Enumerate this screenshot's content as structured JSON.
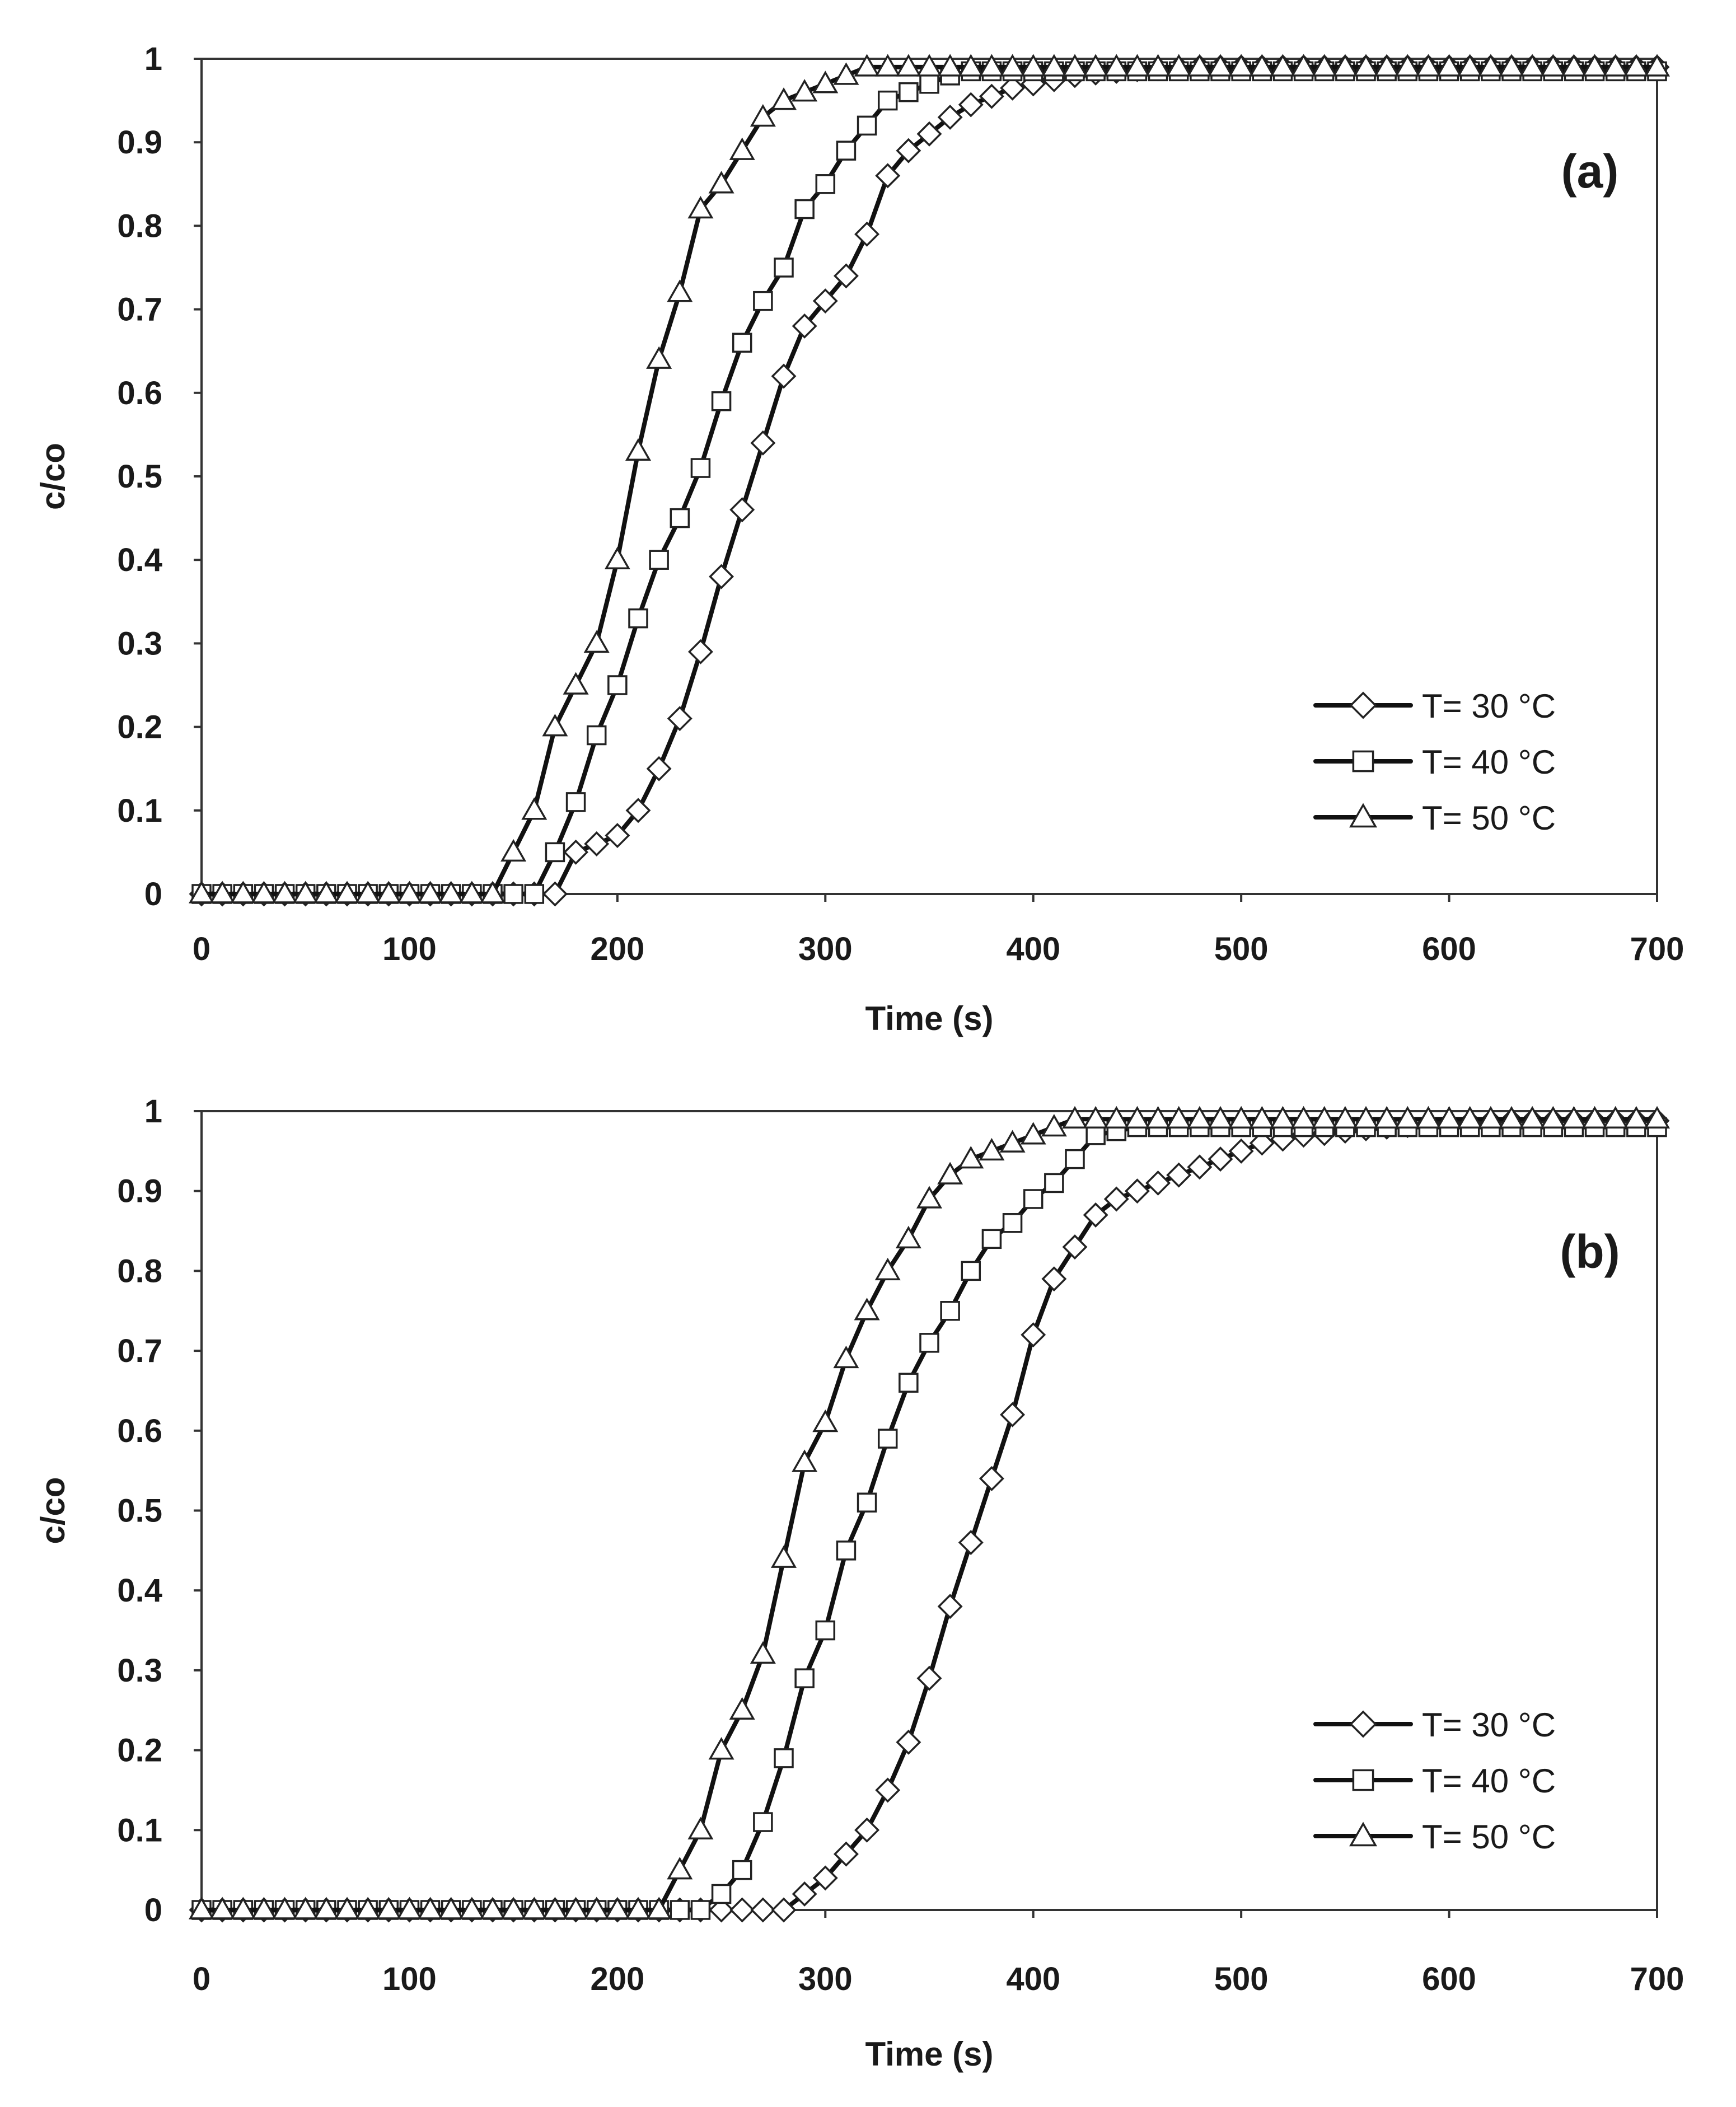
{
  "figure": {
    "colors": {
      "line": "#111111",
      "marker_fill": "#ffffff",
      "marker_stroke": "#222222",
      "axis": "#333333"
    }
  },
  "chart_data": [
    {
      "type": "line",
      "panel_label": "(a)",
      "xlabel": "Time (s)",
      "ylabel": "c/co",
      "xlim": [
        0,
        700
      ],
      "ylim": [
        0,
        1
      ],
      "xticks": [
        "0",
        "100",
        "200",
        "300",
        "400",
        "500",
        "600",
        "700"
      ],
      "yticks": [
        "0",
        "0.1",
        "0.2",
        "0.3",
        "0.4",
        "0.5",
        "0.6",
        "0.7",
        "0.8",
        "0.9",
        "1"
      ],
      "grid": false,
      "legend_position": "bottom-right",
      "series": [
        {
          "name": "T= 30 °C",
          "marker": "diamond",
          "x": [
            0,
            10,
            20,
            30,
            40,
            50,
            60,
            70,
            80,
            90,
            100,
            110,
            120,
            130,
            140,
            150,
            160,
            170,
            180,
            190,
            200,
            210,
            220,
            230,
            240,
            250,
            260,
            270,
            280,
            290,
            300,
            310,
            320,
            330,
            340,
            350,
            360,
            370,
            380,
            390,
            400,
            410,
            420,
            430,
            440,
            450,
            460,
            470,
            480,
            490,
            500,
            510,
            520,
            530,
            540,
            550,
            560,
            570,
            580,
            590,
            600,
            610,
            620,
            630,
            640,
            650,
            660,
            670,
            680,
            690,
            700
          ],
          "y": [
            0,
            0,
            0,
            0,
            0,
            0,
            0,
            0,
            0,
            0,
            0,
            0,
            0,
            0,
            0,
            0,
            0,
            0,
            0.05,
            0.06,
            0.07,
            0.1,
            0.15,
            0.21,
            0.29,
            0.38,
            0.46,
            0.54,
            0.62,
            0.68,
            0.71,
            0.74,
            0.79,
            0.86,
            0.89,
            0.91,
            0.93,
            0.945,
            0.955,
            0.965,
            0.97,
            0.975,
            0.98,
            0.983,
            0.985,
            0.987,
            0.988,
            0.989,
            0.99,
            0.99,
            0.99,
            0.99,
            0.99,
            0.99,
            0.99,
            0.99,
            0.99,
            0.99,
            0.99,
            0.99,
            0.99,
            0.99,
            0.99,
            0.99,
            0.99,
            0.99,
            0.99,
            0.99,
            0.99,
            0.99,
            0.99
          ]
        },
        {
          "name": "T= 40 °C",
          "marker": "square",
          "x": [
            0,
            10,
            20,
            30,
            40,
            50,
            60,
            70,
            80,
            90,
            100,
            110,
            120,
            130,
            140,
            150,
            160,
            170,
            180,
            190,
            200,
            210,
            220,
            230,
            240,
            250,
            260,
            270,
            280,
            290,
            300,
            310,
            320,
            330,
            340,
            350,
            360,
            370,
            380,
            390,
            400,
            410,
            420,
            430,
            440,
            450,
            460,
            470,
            480,
            490,
            500,
            510,
            520,
            530,
            540,
            550,
            560,
            570,
            580,
            590,
            600,
            610,
            620,
            630,
            640,
            650,
            660,
            670,
            680,
            690,
            700
          ],
          "y": [
            0,
            0,
            0,
            0,
            0,
            0,
            0,
            0,
            0,
            0,
            0,
            0,
            0,
            0,
            0,
            0,
            0,
            0.05,
            0.11,
            0.19,
            0.25,
            0.33,
            0.4,
            0.45,
            0.51,
            0.59,
            0.66,
            0.71,
            0.75,
            0.82,
            0.85,
            0.89,
            0.92,
            0.95,
            0.96,
            0.97,
            0.98,
            0.985,
            0.985,
            0.985,
            0.985,
            0.985,
            0.985,
            0.985,
            0.985,
            0.985,
            0.985,
            0.985,
            0.985,
            0.985,
            0.985,
            0.985,
            0.985,
            0.985,
            0.985,
            0.985,
            0.985,
            0.985,
            0.985,
            0.985,
            0.985,
            0.985,
            0.985,
            0.985,
            0.985,
            0.985,
            0.985,
            0.985,
            0.985,
            0.985,
            0.985
          ]
        },
        {
          "name": "T= 50 °C",
          "marker": "triangle",
          "x": [
            0,
            10,
            20,
            30,
            40,
            50,
            60,
            70,
            80,
            90,
            100,
            110,
            120,
            130,
            140,
            150,
            160,
            170,
            180,
            190,
            200,
            210,
            220,
            230,
            240,
            250,
            260,
            270,
            280,
            290,
            300,
            310,
            320,
            330,
            340,
            350,
            360,
            370,
            380,
            390,
            400,
            410,
            420,
            430,
            440,
            450,
            460,
            470,
            480,
            490,
            500,
            510,
            520,
            530,
            540,
            550,
            560,
            570,
            580,
            590,
            600,
            610,
            620,
            630,
            640,
            650,
            660,
            670,
            680,
            690,
            700
          ],
          "y": [
            0,
            0,
            0,
            0,
            0,
            0,
            0,
            0,
            0,
            0,
            0,
            0,
            0,
            0,
            0,
            0.05,
            0.1,
            0.2,
            0.25,
            0.3,
            0.4,
            0.53,
            0.64,
            0.72,
            0.82,
            0.85,
            0.89,
            0.93,
            0.95,
            0.96,
            0.97,
            0.98,
            0.99,
            0.99,
            0.99,
            0.99,
            0.99,
            0.99,
            0.99,
            0.99,
            0.99,
            0.99,
            0.99,
            0.99,
            0.99,
            0.99,
            0.99,
            0.99,
            0.99,
            0.99,
            0.99,
            0.99,
            0.99,
            0.99,
            0.99,
            0.99,
            0.99,
            0.99,
            0.99,
            0.99,
            0.99,
            0.99,
            0.99,
            0.99,
            0.99,
            0.99,
            0.99,
            0.99,
            0.99,
            0.99,
            0.99
          ]
        }
      ]
    },
    {
      "type": "line",
      "panel_label": "(b)",
      "xlabel": "Time (s)",
      "ylabel": "c/co",
      "xlim": [
        0,
        700
      ],
      "ylim": [
        0,
        1
      ],
      "xticks": [
        "0",
        "100",
        "200",
        "300",
        "400",
        "500",
        "600",
        "700"
      ],
      "yticks": [
        "0",
        "0.1",
        "0.2",
        "0.3",
        "0.4",
        "0.5",
        "0.6",
        "0.7",
        "0.8",
        "0.9",
        "1"
      ],
      "grid": false,
      "legend_position": "bottom-right",
      "series": [
        {
          "name": "T= 30 °C",
          "marker": "diamond",
          "x": [
            0,
            10,
            20,
            30,
            40,
            50,
            60,
            70,
            80,
            90,
            100,
            110,
            120,
            130,
            140,
            150,
            160,
            170,
            180,
            190,
            200,
            210,
            220,
            230,
            240,
            250,
            260,
            270,
            280,
            290,
            300,
            310,
            320,
            330,
            340,
            350,
            360,
            370,
            380,
            390,
            400,
            410,
            420,
            430,
            440,
            450,
            460,
            470,
            480,
            490,
            500,
            510,
            520,
            530,
            540,
            550,
            560,
            570,
            580,
            590,
            600,
            610,
            620,
            630,
            640,
            650,
            660,
            670,
            680,
            690,
            700
          ],
          "y": [
            0,
            0,
            0,
            0,
            0,
            0,
            0,
            0,
            0,
            0,
            0,
            0,
            0,
            0,
            0,
            0,
            0,
            0,
            0,
            0,
            0,
            0,
            0,
            0,
            0,
            0,
            0,
            0,
            0,
            0.02,
            0.04,
            0.07,
            0.1,
            0.15,
            0.21,
            0.29,
            0.38,
            0.46,
            0.54,
            0.62,
            0.72,
            0.79,
            0.83,
            0.87,
            0.89,
            0.9,
            0.91,
            0.92,
            0.93,
            0.94,
            0.95,
            0.96,
            0.965,
            0.97,
            0.972,
            0.975,
            0.978,
            0.98,
            0.982,
            0.984,
            0.985,
            0.986,
            0.987,
            0.988,
            0.988,
            0.988,
            0.988,
            0.988,
            0.988,
            0.988,
            0.988
          ]
        },
        {
          "name": "T= 40 °C",
          "marker": "square",
          "x": [
            0,
            10,
            20,
            30,
            40,
            50,
            60,
            70,
            80,
            90,
            100,
            110,
            120,
            130,
            140,
            150,
            160,
            170,
            180,
            190,
            200,
            210,
            220,
            230,
            240,
            250,
            260,
            270,
            280,
            290,
            300,
            310,
            320,
            330,
            340,
            350,
            360,
            370,
            380,
            390,
            400,
            410,
            420,
            430,
            440,
            450,
            460,
            470,
            480,
            490,
            500,
            510,
            520,
            530,
            540,
            550,
            560,
            570,
            580,
            590,
            600,
            610,
            620,
            630,
            640,
            650,
            660,
            670,
            680,
            690,
            700
          ],
          "y": [
            0,
            0,
            0,
            0,
            0,
            0,
            0,
            0,
            0,
            0,
            0,
            0,
            0,
            0,
            0,
            0,
            0,
            0,
            0,
            0,
            0,
            0,
            0,
            0,
            0,
            0.02,
            0.05,
            0.11,
            0.19,
            0.29,
            0.35,
            0.45,
            0.51,
            0.59,
            0.66,
            0.71,
            0.75,
            0.8,
            0.84,
            0.86,
            0.89,
            0.91,
            0.94,
            0.97,
            0.975,
            0.98,
            0.98,
            0.98,
            0.98,
            0.98,
            0.98,
            0.98,
            0.98,
            0.98,
            0.98,
            0.98,
            0.98,
            0.98,
            0.98,
            0.98,
            0.98,
            0.98,
            0.98,
            0.98,
            0.98,
            0.98,
            0.98,
            0.98,
            0.98,
            0.98,
            0.98
          ]
        },
        {
          "name": "T= 50 °C",
          "marker": "triangle",
          "x": [
            0,
            10,
            20,
            30,
            40,
            50,
            60,
            70,
            80,
            90,
            100,
            110,
            120,
            130,
            140,
            150,
            160,
            170,
            180,
            190,
            200,
            210,
            220,
            230,
            240,
            250,
            260,
            270,
            280,
            290,
            300,
            310,
            320,
            330,
            340,
            350,
            360,
            370,
            380,
            390,
            400,
            410,
            420,
            430,
            440,
            450,
            460,
            470,
            480,
            490,
            500,
            510,
            520,
            530,
            540,
            550,
            560,
            570,
            580,
            590,
            600,
            610,
            620,
            630,
            640,
            650,
            660,
            670,
            680,
            690,
            700
          ],
          "y": [
            0,
            0,
            0,
            0,
            0,
            0,
            0,
            0,
            0,
            0,
            0,
            0,
            0,
            0,
            0,
            0,
            0,
            0,
            0,
            0,
            0,
            0,
            0,
            0.05,
            0.1,
            0.2,
            0.25,
            0.32,
            0.44,
            0.56,
            0.61,
            0.69,
            0.75,
            0.8,
            0.84,
            0.89,
            0.92,
            0.94,
            0.95,
            0.96,
            0.97,
            0.98,
            0.99,
            0.99,
            0.99,
            0.99,
            0.99,
            0.99,
            0.99,
            0.99,
            0.99,
            0.99,
            0.99,
            0.99,
            0.99,
            0.99,
            0.99,
            0.99,
            0.99,
            0.99,
            0.99,
            0.99,
            0.99,
            0.99,
            0.99,
            0.99,
            0.99,
            0.99,
            0.99,
            0.99,
            0.99
          ]
        }
      ]
    }
  ]
}
